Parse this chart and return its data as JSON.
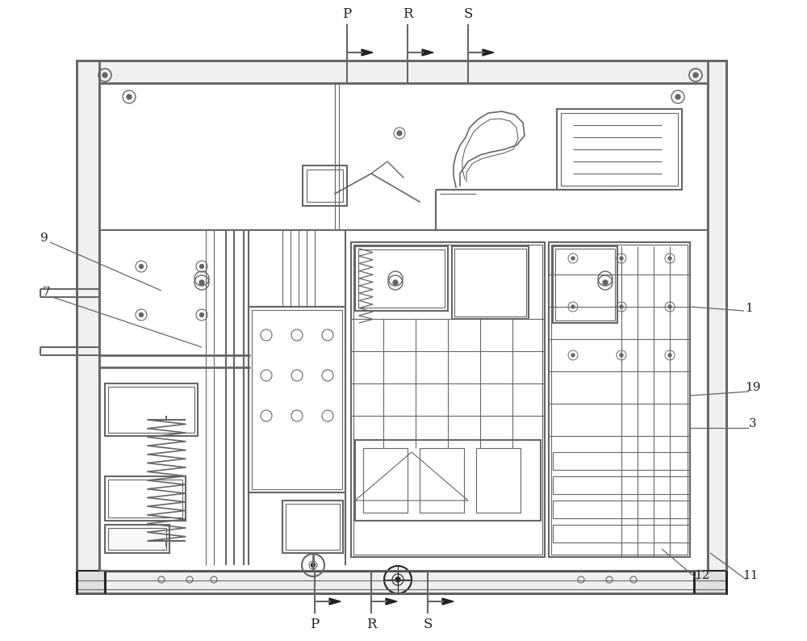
{
  "bg_color": "#ffffff",
  "lc": "#666666",
  "dc": "#222222",
  "figsize": [
    10.0,
    7.94
  ],
  "dpi": 100,
  "labels_top": [
    [
      "P",
      435,
      28
    ],
    [
      "R",
      510,
      28
    ],
    [
      "S",
      585,
      28
    ]
  ],
  "labels_bot": [
    [
      "P",
      390,
      762
    ],
    [
      "R",
      460,
      762
    ],
    [
      "S",
      530,
      762
    ]
  ],
  "ref_labels": [
    [
      "9",
      62,
      308
    ],
    [
      "7",
      62,
      375
    ],
    [
      "1",
      925,
      390
    ],
    [
      "19",
      930,
      488
    ],
    [
      "3",
      930,
      535
    ],
    [
      "12",
      865,
      720
    ],
    [
      "11",
      930,
      720
    ]
  ]
}
